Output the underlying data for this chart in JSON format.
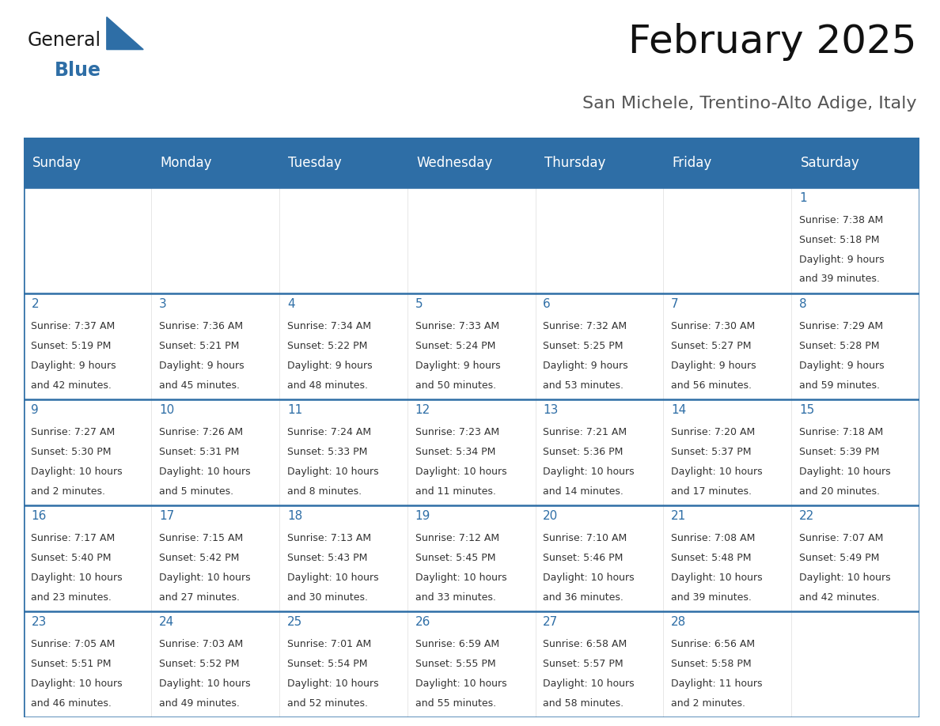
{
  "title": "February 2025",
  "subtitle": "San Michele, Trentino-Alto Adige, Italy",
  "days_of_week": [
    "Sunday",
    "Monday",
    "Tuesday",
    "Wednesday",
    "Thursday",
    "Friday",
    "Saturday"
  ],
  "header_bg": "#2E6EA6",
  "header_text": "#FFFFFF",
  "cell_bg": "#FFFFFF",
  "day_number_color": "#2E6EA6",
  "text_color": "#333333",
  "border_color": "#2E6EA6",
  "line_color": "#2E6EA6",
  "calendar_data": [
    [
      null,
      null,
      null,
      null,
      null,
      null,
      {
        "day": "1",
        "sunrise": "7:38 AM",
        "sunset": "5:18 PM",
        "daylight_line1": "Daylight: 9 hours",
        "daylight_line2": "and 39 minutes."
      }
    ],
    [
      {
        "day": "2",
        "sunrise": "7:37 AM",
        "sunset": "5:19 PM",
        "daylight_line1": "Daylight: 9 hours",
        "daylight_line2": "and 42 minutes."
      },
      {
        "day": "3",
        "sunrise": "7:36 AM",
        "sunset": "5:21 PM",
        "daylight_line1": "Daylight: 9 hours",
        "daylight_line2": "and 45 minutes."
      },
      {
        "day": "4",
        "sunrise": "7:34 AM",
        "sunset": "5:22 PM",
        "daylight_line1": "Daylight: 9 hours",
        "daylight_line2": "and 48 minutes."
      },
      {
        "day": "5",
        "sunrise": "7:33 AM",
        "sunset": "5:24 PM",
        "daylight_line1": "Daylight: 9 hours",
        "daylight_line2": "and 50 minutes."
      },
      {
        "day": "6",
        "sunrise": "7:32 AM",
        "sunset": "5:25 PM",
        "daylight_line1": "Daylight: 9 hours",
        "daylight_line2": "and 53 minutes."
      },
      {
        "day": "7",
        "sunrise": "7:30 AM",
        "sunset": "5:27 PM",
        "daylight_line1": "Daylight: 9 hours",
        "daylight_line2": "and 56 minutes."
      },
      {
        "day": "8",
        "sunrise": "7:29 AM",
        "sunset": "5:28 PM",
        "daylight_line1": "Daylight: 9 hours",
        "daylight_line2": "and 59 minutes."
      }
    ],
    [
      {
        "day": "9",
        "sunrise": "7:27 AM",
        "sunset": "5:30 PM",
        "daylight_line1": "Daylight: 10 hours",
        "daylight_line2": "and 2 minutes."
      },
      {
        "day": "10",
        "sunrise": "7:26 AM",
        "sunset": "5:31 PM",
        "daylight_line1": "Daylight: 10 hours",
        "daylight_line2": "and 5 minutes."
      },
      {
        "day": "11",
        "sunrise": "7:24 AM",
        "sunset": "5:33 PM",
        "daylight_line1": "Daylight: 10 hours",
        "daylight_line2": "and 8 minutes."
      },
      {
        "day": "12",
        "sunrise": "7:23 AM",
        "sunset": "5:34 PM",
        "daylight_line1": "Daylight: 10 hours",
        "daylight_line2": "and 11 minutes."
      },
      {
        "day": "13",
        "sunrise": "7:21 AM",
        "sunset": "5:36 PM",
        "daylight_line1": "Daylight: 10 hours",
        "daylight_line2": "and 14 minutes."
      },
      {
        "day": "14",
        "sunrise": "7:20 AM",
        "sunset": "5:37 PM",
        "daylight_line1": "Daylight: 10 hours",
        "daylight_line2": "and 17 minutes."
      },
      {
        "day": "15",
        "sunrise": "7:18 AM",
        "sunset": "5:39 PM",
        "daylight_line1": "Daylight: 10 hours",
        "daylight_line2": "and 20 minutes."
      }
    ],
    [
      {
        "day": "16",
        "sunrise": "7:17 AM",
        "sunset": "5:40 PM",
        "daylight_line1": "Daylight: 10 hours",
        "daylight_line2": "and 23 minutes."
      },
      {
        "day": "17",
        "sunrise": "7:15 AM",
        "sunset": "5:42 PM",
        "daylight_line1": "Daylight: 10 hours",
        "daylight_line2": "and 27 minutes."
      },
      {
        "day": "18",
        "sunrise": "7:13 AM",
        "sunset": "5:43 PM",
        "daylight_line1": "Daylight: 10 hours",
        "daylight_line2": "and 30 minutes."
      },
      {
        "day": "19",
        "sunrise": "7:12 AM",
        "sunset": "5:45 PM",
        "daylight_line1": "Daylight: 10 hours",
        "daylight_line2": "and 33 minutes."
      },
      {
        "day": "20",
        "sunrise": "7:10 AM",
        "sunset": "5:46 PM",
        "daylight_line1": "Daylight: 10 hours",
        "daylight_line2": "and 36 minutes."
      },
      {
        "day": "21",
        "sunrise": "7:08 AM",
        "sunset": "5:48 PM",
        "daylight_line1": "Daylight: 10 hours",
        "daylight_line2": "and 39 minutes."
      },
      {
        "day": "22",
        "sunrise": "7:07 AM",
        "sunset": "5:49 PM",
        "daylight_line1": "Daylight: 10 hours",
        "daylight_line2": "and 42 minutes."
      }
    ],
    [
      {
        "day": "23",
        "sunrise": "7:05 AM",
        "sunset": "5:51 PM",
        "daylight_line1": "Daylight: 10 hours",
        "daylight_line2": "and 46 minutes."
      },
      {
        "day": "24",
        "sunrise": "7:03 AM",
        "sunset": "5:52 PM",
        "daylight_line1": "Daylight: 10 hours",
        "daylight_line2": "and 49 minutes."
      },
      {
        "day": "25",
        "sunrise": "7:01 AM",
        "sunset": "5:54 PM",
        "daylight_line1": "Daylight: 10 hours",
        "daylight_line2": "and 52 minutes."
      },
      {
        "day": "26",
        "sunrise": "6:59 AM",
        "sunset": "5:55 PM",
        "daylight_line1": "Daylight: 10 hours",
        "daylight_line2": "and 55 minutes."
      },
      {
        "day": "27",
        "sunrise": "6:58 AM",
        "sunset": "5:57 PM",
        "daylight_line1": "Daylight: 10 hours",
        "daylight_line2": "and 58 minutes."
      },
      {
        "day": "28",
        "sunrise": "6:56 AM",
        "sunset": "5:58 PM",
        "daylight_line1": "Daylight: 11 hours",
        "daylight_line2": "and 2 minutes."
      },
      null
    ]
  ],
  "logo_color_general": "#1a1a1a",
  "logo_color_blue": "#2E6EA6",
  "logo_triangle_color": "#2E6EA6",
  "title_fontsize": 36,
  "subtitle_fontsize": 16,
  "header_fontsize": 12,
  "day_num_fontsize": 11,
  "cell_text_fontsize": 9
}
